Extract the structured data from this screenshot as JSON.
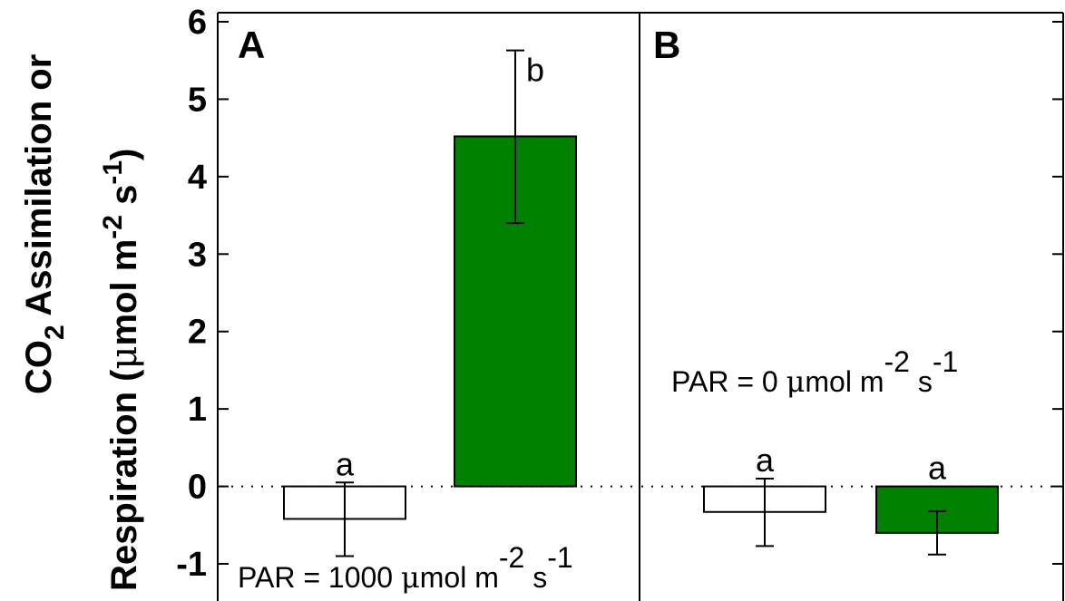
{
  "chart_data": [
    {
      "type": "bar",
      "panel": "A",
      "annotation": {
        "prefix": "PAR = 1000 ",
        "mu": "μ",
        "unit_main": "mol m",
        "sup1": "-2",
        "unit_mid": " s",
        "sup2": "-1"
      },
      "ylabel": {
        "line1_a": "CO",
        "line1_sub": "2",
        "line1_b": " Assimilation or",
        "line2_a": "Respiration (",
        "line2_mu": "μ",
        "line2_b": "mol m",
        "line2_sup1": "-2",
        "line2_c": " s",
        "line2_sup2": "-1",
        "line2_d": ")"
      },
      "ylim": [
        -1.0,
        6.0
      ],
      "yticks": [
        "-1",
        "0",
        "1",
        "2",
        "3",
        "4",
        "5",
        "6"
      ],
      "zero_line": "dotted",
      "bars": [
        {
          "value": -0.42,
          "err_low": -0.9,
          "err_high": 0.05,
          "sig": "a",
          "fill": "#ffffff"
        },
        {
          "value": 4.52,
          "err_low": 3.4,
          "err_high": 5.63,
          "sig": "b",
          "fill": "#008000"
        }
      ]
    },
    {
      "type": "bar",
      "panel": "B",
      "annotation": {
        "prefix": "PAR = 0 ",
        "mu": "μ",
        "unit_main": "mol m",
        "sup1": "-2",
        "unit_mid": " s",
        "sup2": "-1"
      },
      "ylim": [
        -1.0,
        6.0
      ],
      "zero_line": "dotted",
      "bars": [
        {
          "value": -0.33,
          "err_low": -0.77,
          "err_high": 0.1,
          "sig": "a",
          "fill": "#ffffff"
        },
        {
          "value": -0.6,
          "err_low": -0.88,
          "err_high": -0.32,
          "sig": "a",
          "fill": "#008000"
        }
      ]
    }
  ]
}
